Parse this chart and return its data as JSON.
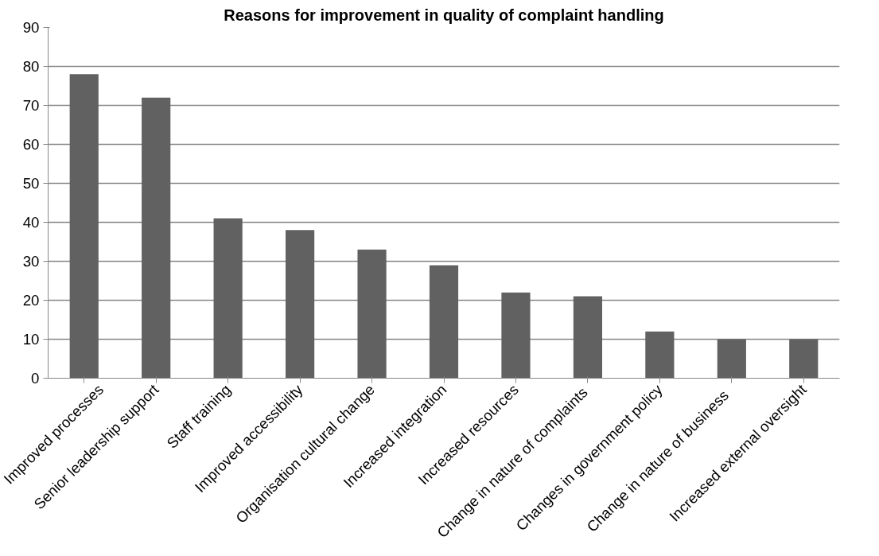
{
  "chart_data": {
    "type": "bar",
    "title": "Reasons for improvement in quality of complaint handling",
    "categories": [
      "Improved processes",
      "Senior leadership support",
      "Staff training",
      "Improved accessibility",
      "Organisation cultural change",
      "Increased integration",
      "Increased resources",
      "Change in  nature of complaints",
      "Changes in government policy",
      "Change in  nature of  business",
      "Increased external oversight"
    ],
    "values": [
      78,
      72,
      41,
      38,
      33,
      29,
      22,
      21,
      12,
      10,
      10
    ],
    "color": "#616161",
    "ylim": [
      0,
      90
    ],
    "yticks": [
      0,
      10,
      20,
      30,
      40,
      50,
      60,
      70,
      80,
      90
    ],
    "grid": "y"
  }
}
